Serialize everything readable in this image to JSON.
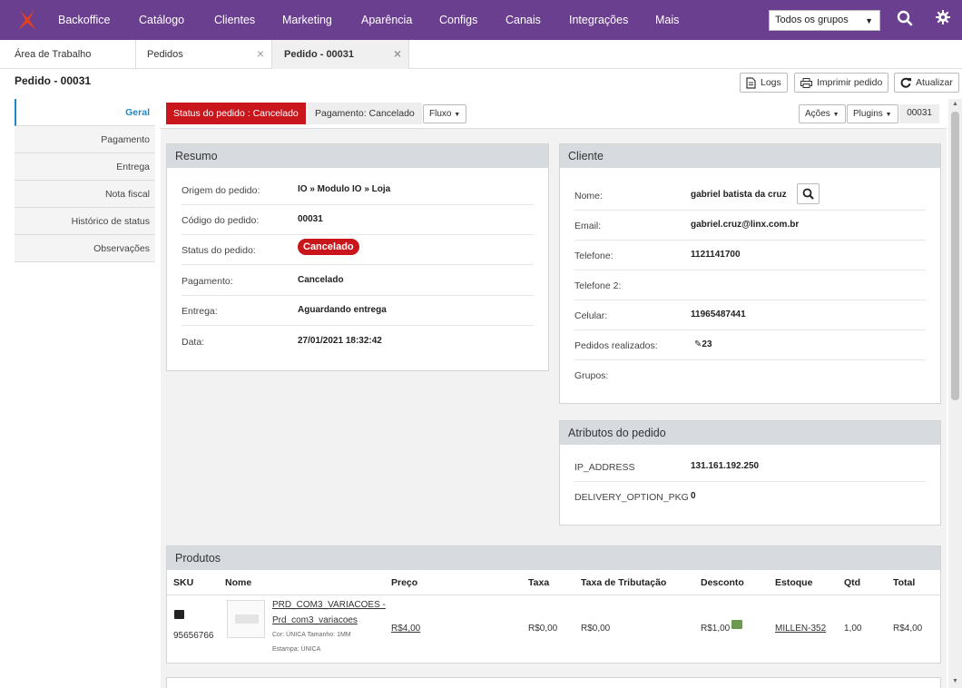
{
  "nav": {
    "brand": "Backoffice",
    "items": [
      "Catálogo",
      "Clientes",
      "Marketing",
      "Aparência",
      "Configs",
      "Canais",
      "Integrações",
      "Mais"
    ],
    "group_select": "Todos os grupos"
  },
  "tabs": {
    "t1": "Área de Trabalho",
    "t2": "Pedidos",
    "t3": "Pedido - 00031"
  },
  "header": {
    "title": "Pedido - 00031",
    "logs": "Logs",
    "print": "Imprimir pedido",
    "refresh": "Atualizar"
  },
  "sidebar": {
    "items": [
      "Geral",
      "Pagamento",
      "Entrega",
      "Nota fiscal",
      "Histórico de status",
      "Observações"
    ]
  },
  "statusbar": {
    "status": "Status do pedido : Cancelado",
    "payment": "Pagamento: Cancelado",
    "flow": "Fluxo",
    "actions": "Ações",
    "plugins": "Plugins",
    "number": "00031"
  },
  "resumo": {
    "title": "Resumo",
    "rows": [
      {
        "k": "Origem do pedido:",
        "v": "IO » Modulo IO » Loja"
      },
      {
        "k": "Código do pedido:",
        "v": "00031"
      },
      {
        "k": "Status do pedido:",
        "v": "Cancelado"
      },
      {
        "k": "Pagamento:",
        "v": "Cancelado"
      },
      {
        "k": "Entrega:",
        "v": "Aguardando entrega"
      },
      {
        "k": "Data:",
        "v": "27/01/2021 18:32:42"
      }
    ]
  },
  "cliente": {
    "title": "Cliente",
    "rows": [
      {
        "k": "Nome:",
        "v": "gabriel batista da cruz"
      },
      {
        "k": "Email:",
        "v": "gabriel.cruz@linx.com.br"
      },
      {
        "k": "Telefone:",
        "v": "1121141700"
      },
      {
        "k": "Telefone 2:",
        "v": ""
      },
      {
        "k": "Celular:",
        "v": "11965487441"
      },
      {
        "k": "Pedidos realizados:",
        "v": "23"
      },
      {
        "k": "Grupos:",
        "v": ""
      }
    ]
  },
  "atributos": {
    "title": "Atributos do pedido",
    "rows": [
      {
        "k": "IP_ADDRESS",
        "v": "131.161.192.250"
      },
      {
        "k": "DELIVERY_OPTION_PKG",
        "v": "0"
      }
    ]
  },
  "produtos": {
    "title": "Produtos",
    "headers": [
      "SKU",
      "Nome",
      "Preço",
      "Taxa",
      "Taxa de Tributação",
      "Desconto",
      "Estoque",
      "Qtd",
      "Total"
    ],
    "row": {
      "sku": "95656766",
      "name_line1": "PRD_COM3_VARIACOES -",
      "name_line2": "Prd_com3_variacoes",
      "detail1": "Cor: ÚNICA Tamanho: 1MM",
      "detail2": "Estampa: ÚNICA",
      "preco": "R$4,00",
      "taxa": "R$0,00",
      "tributacao": "R$0,00",
      "desconto": "R$1,00",
      "estoque": "MILLEN-352",
      "qtd": "1,00",
      "total": "R$4,00"
    }
  }
}
